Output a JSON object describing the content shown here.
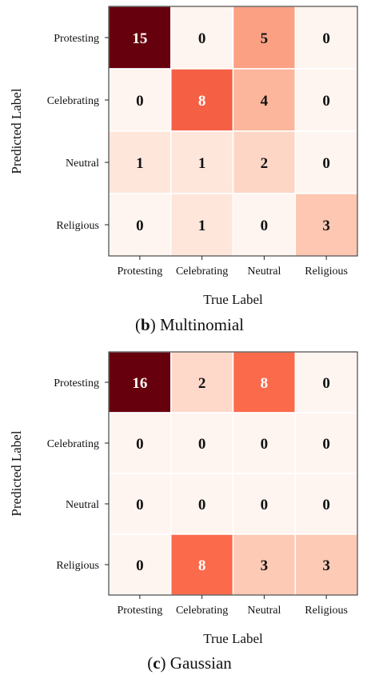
{
  "chart_data": [
    {
      "type": "heatmap",
      "panel_letter": "b",
      "panel_name": "Multinomial",
      "xlabel": "True Label",
      "ylabel": "Predicted Label",
      "x_categories": [
        "Protesting",
        "Celebrating",
        "Neutral",
        "Religious"
      ],
      "y_categories": [
        "Protesting",
        "Celebrating",
        "Neutral",
        "Religious"
      ],
      "values": [
        [
          15,
          0,
          5,
          0
        ],
        [
          0,
          8,
          4,
          0
        ],
        [
          1,
          1,
          2,
          0
        ],
        [
          0,
          1,
          0,
          3
        ]
      ],
      "color_max": 15,
      "colormap": [
        "#fff5f0",
        "#fcbba1",
        "#fb6a4a",
        "#cb181d",
        "#67000d"
      ]
    },
    {
      "type": "heatmap",
      "panel_letter": "c",
      "panel_name": "Gaussian",
      "xlabel": "True Label",
      "ylabel": "Predicted Label",
      "x_categories": [
        "Protesting",
        "Celebrating",
        "Neutral",
        "Religious"
      ],
      "y_categories": [
        "Protesting",
        "Celebrating",
        "Neutral",
        "Religious"
      ],
      "values": [
        [
          16,
          2,
          8,
          0
        ],
        [
          0,
          0,
          0,
          0
        ],
        [
          0,
          0,
          0,
          0
        ],
        [
          0,
          8,
          3,
          3
        ]
      ],
      "color_max": 16,
      "colormap": [
        "#fff5f0",
        "#fcbba1",
        "#fb6a4a",
        "#cb181d",
        "#67000d"
      ]
    }
  ]
}
